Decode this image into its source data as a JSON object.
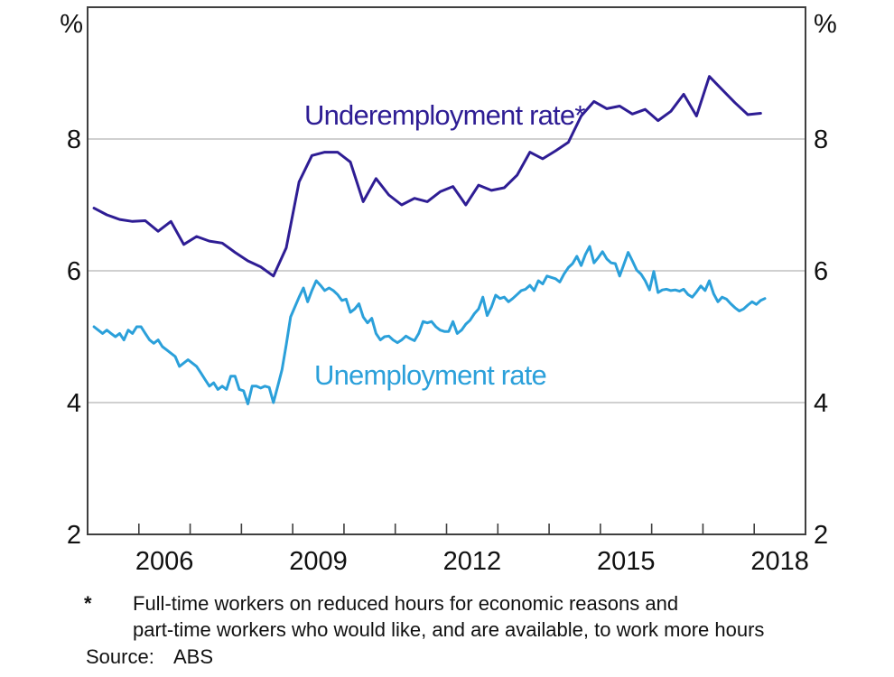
{
  "chart_data": {
    "type": "line",
    "title": "",
    "x_range": [
      2005,
      2019
    ],
    "y_range": [
      2,
      10
    ],
    "y_axis_unit": "%",
    "y_tick_values": [
      2,
      4,
      6,
      8
    ],
    "y_gridline_values": [
      4,
      6,
      8
    ],
    "x_tick_years": [
      2006,
      2007,
      2008,
      2009,
      2010,
      2011,
      2012,
      2013,
      2014,
      2015,
      2016,
      2017,
      2018
    ],
    "x_label_years": [
      2006,
      2009,
      2012,
      2015,
      2018
    ],
    "grid": "horizontal-only",
    "legend": "inline-labels",
    "series": [
      {
        "name": "Underemployment rate*",
        "color": "#2e1d94",
        "frequency": "quarterly",
        "x_start": 2005.125,
        "x_step": 0.25,
        "values": [
          6.95,
          6.85,
          6.78,
          6.75,
          6.76,
          6.6,
          6.75,
          6.4,
          6.52,
          6.45,
          6.42,
          6.28,
          6.15,
          6.06,
          5.92,
          6.35,
          7.35,
          7.75,
          7.8,
          7.8,
          7.65,
          7.05,
          7.4,
          7.15,
          7.0,
          7.1,
          7.05,
          7.2,
          7.28,
          7.0,
          7.3,
          7.22,
          7.26,
          7.45,
          7.8,
          7.7,
          7.82,
          7.95,
          8.35,
          8.57,
          8.46,
          8.5,
          8.38,
          8.45,
          8.28,
          8.42,
          8.68,
          8.35,
          8.95,
          8.75,
          8.55,
          8.37,
          8.39
        ]
      },
      {
        "name": "Unemployment rate",
        "color": "#2ba0da",
        "frequency": "monthly",
        "x_start": 2005.125,
        "x_step": 0.0833333,
        "values": [
          5.15,
          5.1,
          5.05,
          5.1,
          5.05,
          5.0,
          5.05,
          4.95,
          5.1,
          5.05,
          5.15,
          5.15,
          5.05,
          4.95,
          4.9,
          4.95,
          4.85,
          4.8,
          4.75,
          4.7,
          4.55,
          4.6,
          4.65,
          4.6,
          4.55,
          4.45,
          4.35,
          4.25,
          4.3,
          4.2,
          4.25,
          4.2,
          4.4,
          4.4,
          4.2,
          4.18,
          3.98,
          4.25,
          4.25,
          4.22,
          4.25,
          4.23,
          4.0,
          4.25,
          4.5,
          4.88,
          5.3,
          5.45,
          5.6,
          5.74,
          5.53,
          5.7,
          5.85,
          5.78,
          5.7,
          5.74,
          5.7,
          5.64,
          5.55,
          5.57,
          5.37,
          5.42,
          5.5,
          5.3,
          5.21,
          5.28,
          5.05,
          4.95,
          5.0,
          5.01,
          4.95,
          4.91,
          4.95,
          5.01,
          4.97,
          4.94,
          5.05,
          5.23,
          5.21,
          5.23,
          5.15,
          5.1,
          5.08,
          5.08,
          5.23,
          5.05,
          5.1,
          5.19,
          5.25,
          5.35,
          5.42,
          5.6,
          5.32,
          5.45,
          5.63,
          5.58,
          5.6,
          5.53,
          5.58,
          5.64,
          5.7,
          5.72,
          5.78,
          5.7,
          5.85,
          5.8,
          5.92,
          5.9,
          5.88,
          5.83,
          5.95,
          6.05,
          6.11,
          6.22,
          6.08,
          6.25,
          6.37,
          6.12,
          6.2,
          6.29,
          6.18,
          6.12,
          6.11,
          5.92,
          6.1,
          6.28,
          6.15,
          6.01,
          5.95,
          5.85,
          5.71,
          5.99,
          5.67,
          5.71,
          5.72,
          5.7,
          5.71,
          5.69,
          5.72,
          5.64,
          5.6,
          5.68,
          5.77,
          5.7,
          5.85,
          5.65,
          5.53,
          5.6,
          5.57,
          5.5,
          5.44,
          5.39,
          5.42,
          5.48,
          5.53,
          5.49,
          5.55,
          5.58
        ]
      }
    ]
  },
  "footnote": {
    "marker": "*",
    "line1": "Full-time workers on reduced hours for economic reasons and",
    "line2": "part-time workers who would like, and are available, to work more hours",
    "source_label": "Source:",
    "source_value": "ABS"
  }
}
